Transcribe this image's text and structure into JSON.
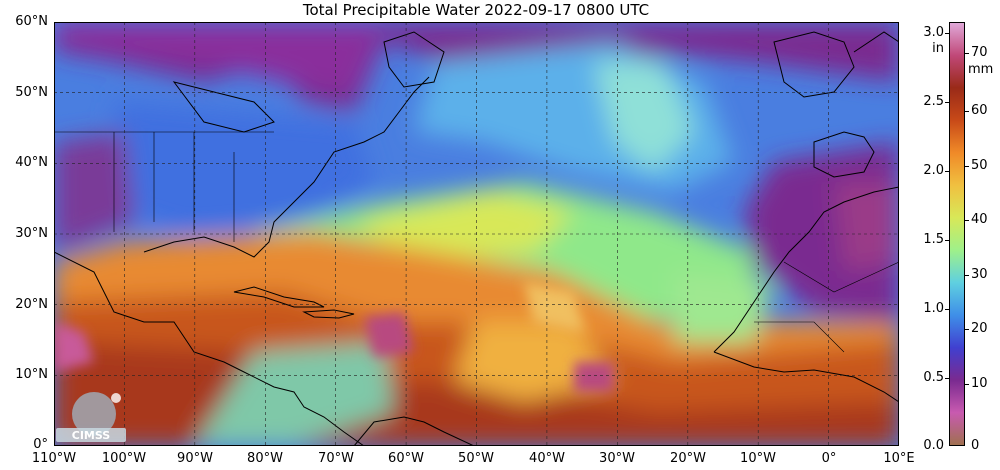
{
  "title": "Total Precipitable Water  2022-09-17 0800 UTC",
  "lat_labels": [
    "60°N",
    "50°N",
    "40°N",
    "30°N",
    "20°N",
    "10°N",
    "0°"
  ],
  "lon_labels": [
    "110°W",
    "100°W",
    "90°W",
    "80°W",
    "70°W",
    "60°W",
    "50°W",
    "40°W",
    "30°W",
    "20°W",
    "10°W",
    "0°",
    "10°E"
  ],
  "colorbar": {
    "unit_in": "in",
    "unit_mm": "mm",
    "inch_ticks": [
      "3.0",
      "2.5",
      "2.0",
      "1.5",
      "1.0",
      "0.5",
      "0.0"
    ],
    "mm_ticks": [
      "70",
      "60",
      "50",
      "40",
      "30",
      "20",
      "10",
      "0"
    ],
    "colors": [
      "#a07050",
      "#c85ab0",
      "#7a2a90",
      "#4040d0",
      "#3f8fe8",
      "#5fd0e0",
      "#9ff08a",
      "#d8e858",
      "#f0c040",
      "#f08a28",
      "#c84a18",
      "#9a2a18",
      "#c04878",
      "#e0a8d8"
    ]
  },
  "logo": {
    "text": "CIMSS"
  }
}
